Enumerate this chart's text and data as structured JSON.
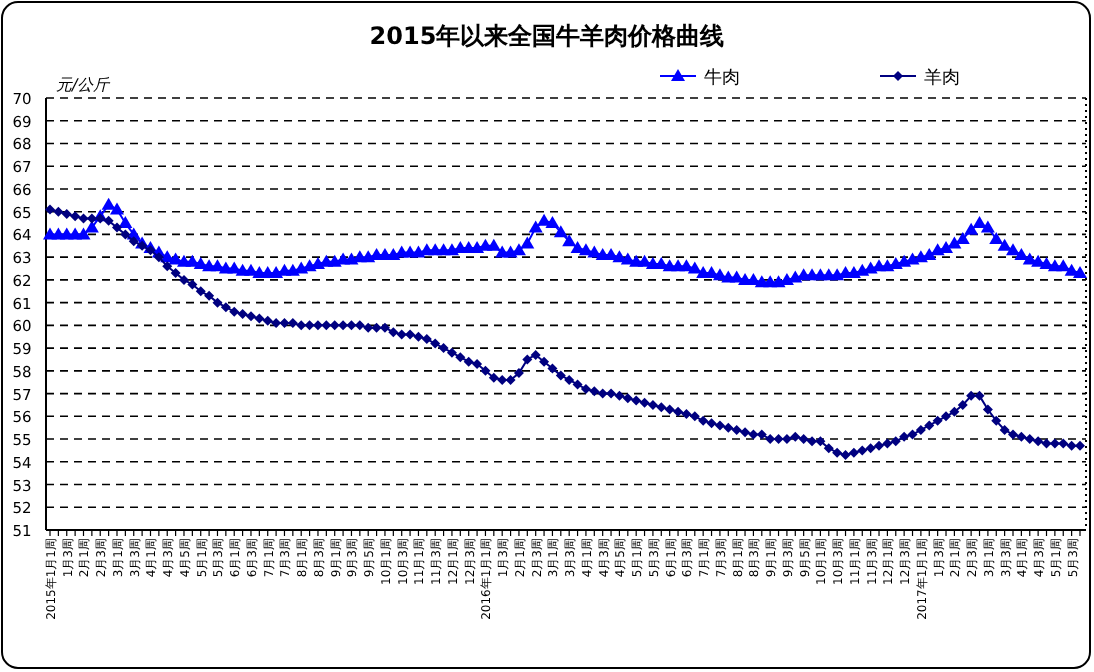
{
  "chart_data": {
    "type": "line",
    "title": "2015年以来全国牛羊肉价格曲线",
    "ylabel": "元/公斤",
    "categories": [
      "2015年1月1周",
      null,
      "1月3周",
      null,
      "2月1周",
      null,
      "2月3周",
      null,
      "3月1周",
      null,
      "3月3周",
      null,
      "4月1周",
      null,
      "4月3周",
      null,
      "4月5周",
      null,
      "5月1周",
      null,
      "5月3周",
      null,
      "6月1周",
      null,
      "6月3周",
      null,
      "7月1周",
      null,
      "7月3周",
      null,
      "8月1周",
      null,
      "8月3周",
      null,
      "9月1周",
      null,
      "9月3周",
      null,
      "9月5周",
      null,
      "10月1周",
      null,
      "10月3周",
      null,
      "11月1周",
      null,
      "11月3周",
      null,
      "12月1周",
      null,
      "12月3周",
      null,
      "2016年1月1周",
      null,
      "1月3周",
      null,
      "2月1周",
      null,
      "2月3周",
      null,
      "3月1周",
      null,
      "3月3周",
      null,
      "4月1周",
      null,
      "4月3周",
      null,
      "4月5周",
      null,
      "5月1周",
      null,
      "5月3周",
      null,
      "6月1周",
      null,
      "6月3周",
      null,
      "7月1周",
      null,
      "7月3周",
      null,
      "8月1周",
      null,
      "8月3周",
      null,
      "9月1周",
      null,
      "9月3周",
      null,
      "9月5周",
      null,
      "10月1周",
      null,
      "10月3周",
      null,
      "11月1周",
      null,
      "11月3周",
      null,
      "12月1周",
      null,
      "12月3周",
      null,
      "2017年1月1周",
      null,
      "1月3周",
      null,
      "2月1周",
      null,
      "2月3周",
      null,
      "3月1周",
      null,
      "3月3周",
      null,
      "4月1周",
      null,
      "4月3周",
      null,
      "5月1周",
      null,
      "5月3周",
      null
    ],
    "series": [
      {
        "name": "牛肉",
        "color": "#0000ff",
        "marker": "triangle",
        "values": [
          64.0,
          64.0,
          64.0,
          64.0,
          64.0,
          64.3,
          64.8,
          65.3,
          65.1,
          64.5,
          64.0,
          63.6,
          63.4,
          63.2,
          63.0,
          62.9,
          62.8,
          62.8,
          62.7,
          62.6,
          62.6,
          62.5,
          62.5,
          62.4,
          62.4,
          62.3,
          62.3,
          62.3,
          62.4,
          62.4,
          62.5,
          62.6,
          62.7,
          62.8,
          62.8,
          62.9,
          62.9,
          63.0,
          63.0,
          63.1,
          63.1,
          63.1,
          63.2,
          63.2,
          63.2,
          63.3,
          63.3,
          63.3,
          63.3,
          63.4,
          63.4,
          63.4,
          63.5,
          63.5,
          63.2,
          63.2,
          63.3,
          63.6,
          64.3,
          64.6,
          64.5,
          64.1,
          63.7,
          63.4,
          63.3,
          63.2,
          63.1,
          63.1,
          63.0,
          62.9,
          62.8,
          62.8,
          62.7,
          62.7,
          62.6,
          62.6,
          62.6,
          62.5,
          62.3,
          62.3,
          62.2,
          62.1,
          62.1,
          62.0,
          62.0,
          61.9,
          61.9,
          61.9,
          62.0,
          62.1,
          62.2,
          62.2,
          62.2,
          62.2,
          62.2,
          62.3,
          62.3,
          62.4,
          62.5,
          62.6,
          62.6,
          62.7,
          62.8,
          62.9,
          63.0,
          63.1,
          63.3,
          63.4,
          63.6,
          63.8,
          64.2,
          64.5,
          64.3,
          63.8,
          63.5,
          63.3,
          63.1,
          62.9,
          62.8,
          62.7,
          62.6,
          62.6,
          62.4,
          62.3
        ]
      },
      {
        "name": "羊肉",
        "color": "#000080",
        "marker": "diamond",
        "values": [
          65.1,
          65.0,
          64.9,
          64.8,
          64.7,
          64.7,
          64.7,
          64.6,
          64.3,
          64.0,
          63.7,
          63.5,
          63.3,
          63.0,
          62.6,
          62.3,
          62.0,
          61.8,
          61.5,
          61.3,
          61.0,
          60.8,
          60.6,
          60.5,
          60.4,
          60.3,
          60.2,
          60.1,
          60.1,
          60.1,
          60.0,
          60.0,
          60.0,
          60.0,
          60.0,
          60.0,
          60.0,
          60.0,
          59.9,
          59.9,
          59.9,
          59.7,
          59.6,
          59.6,
          59.5,
          59.4,
          59.2,
          59.0,
          58.8,
          58.6,
          58.4,
          58.3,
          58.0,
          57.7,
          57.6,
          57.6,
          57.9,
          58.5,
          58.7,
          58.4,
          58.1,
          57.8,
          57.6,
          57.4,
          57.2,
          57.1,
          57.0,
          57.0,
          56.9,
          56.8,
          56.7,
          56.6,
          56.5,
          56.4,
          56.3,
          56.2,
          56.1,
          56.0,
          55.8,
          55.7,
          55.6,
          55.5,
          55.4,
          55.3,
          55.2,
          55.2,
          55.0,
          55.0,
          55.0,
          55.1,
          55.0,
          54.9,
          54.9,
          54.6,
          54.4,
          54.3,
          54.4,
          54.5,
          54.6,
          54.7,
          54.8,
          54.9,
          55.1,
          55.2,
          55.4,
          55.6,
          55.8,
          56.0,
          56.2,
          56.5,
          56.9,
          56.9,
          56.3,
          55.8,
          55.4,
          55.2,
          55.1,
          55.0,
          54.9,
          54.8,
          54.8,
          54.8,
          54.7,
          54.7
        ]
      }
    ],
    "ylim": [
      51,
      70
    ],
    "yticks": [
      51,
      52,
      53,
      54,
      55,
      56,
      57,
      58,
      59,
      60,
      61,
      62,
      63,
      64,
      65,
      66,
      67,
      68,
      69,
      70
    ],
    "grid": "y",
    "legend": "top right",
    "line_style": "solid"
  }
}
